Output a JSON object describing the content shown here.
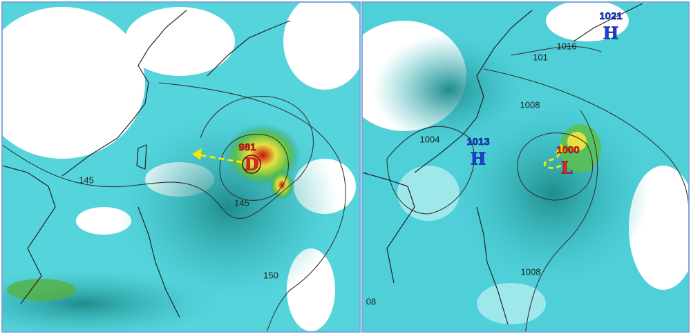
{
  "left_panel": {
    "labels": [
      "981",
      "D",
      "145",
      "145",
      "150"
    ]
  },
  "right_panel": {
    "labels": [
      "1021",
      "H",
      "1016",
      "101",
      "1008",
      "1004",
      "1013",
      "H",
      "1000",
      "L",
      "1008",
      "08"
    ]
  }
}
